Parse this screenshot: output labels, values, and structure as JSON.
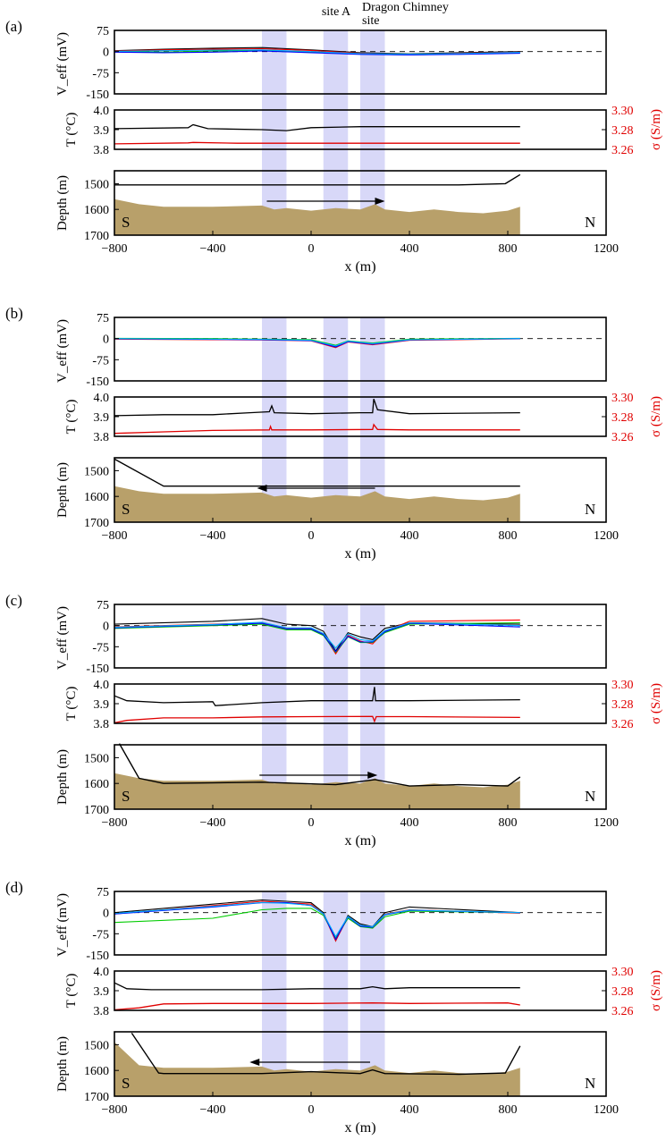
{
  "site_labels": {
    "site_a": "site A",
    "dragon_1": "Dragon Chimney",
    "dragon_2": "site"
  },
  "shared": {
    "x_axis": {
      "label": "x (m)",
      "range": [
        -800,
        1200
      ],
      "ticks": [
        "-800",
        "-400",
        "0",
        "400",
        "800",
        "1200"
      ]
    },
    "shaded_bands_m": [
      [
        -200,
        -100
      ],
      [
        50,
        150
      ],
      [
        200,
        300
      ]
    ],
    "veff_axis": {
      "label": "V_eff (mV)",
      "range": [
        -150,
        75
      ],
      "ticks": [
        "75",
        "0",
        "-75",
        "-150"
      ]
    },
    "temp_axis": {
      "label": "T (°C)",
      "range": [
        3.8,
        4.0
      ],
      "ticks": [
        "4.0",
        "3.9",
        "3.8"
      ]
    },
    "cond_axis": {
      "label": "σ (S/m)",
      "range": [
        3.26,
        3.3
      ],
      "ticks": [
        "3.30",
        "3.28",
        "3.26"
      ]
    },
    "depth_axis": {
      "label": "Depth (m)",
      "range": [
        1450,
        1700
      ],
      "ticks": [
        "1500",
        "1600",
        "1700"
      ]
    },
    "south_label": "S",
    "north_label": "N",
    "colors": {
      "band": "#d8d8f8",
      "seafloor": "#b8a06a",
      "veff": [
        "#000000",
        "#ff0000",
        "#00cc00",
        "#0000ff",
        "#00aaff"
      ],
      "temp": "#000000",
      "cond": "#e00000"
    }
  },
  "chart_data": [
    {
      "panel": "(a)",
      "type": "line",
      "direction": "north",
      "arrow_m": [
        -180,
        300
      ],
      "veff_series": [
        {
          "x": [
            -800,
            -600,
            -400,
            -200,
            0,
            200,
            400,
            600,
            850
          ],
          "y": [
            3,
            8,
            12,
            14,
            6,
            -4,
            -8,
            -4,
            0
          ]
        },
        {
          "x": [
            -800,
            -600,
            -400,
            -200,
            0,
            200,
            400,
            600,
            850
          ],
          "y": [
            2,
            6,
            8,
            10,
            4,
            -6,
            -10,
            -6,
            -2
          ]
        },
        {
          "x": [
            -800,
            -600,
            -400,
            -200,
            0,
            200,
            400,
            600,
            850
          ],
          "y": [
            0,
            -2,
            2,
            4,
            -2,
            -8,
            -12,
            -8,
            -4
          ]
        },
        {
          "x": [
            -800,
            -600,
            -400,
            -200,
            0,
            200,
            400,
            600,
            850
          ],
          "y": [
            -2,
            -4,
            -2,
            2,
            -4,
            -10,
            -12,
            -10,
            -6
          ]
        },
        {
          "x": [
            -800,
            -600,
            -400,
            -200,
            0,
            200,
            400,
            600,
            850
          ],
          "y": [
            1,
            3,
            5,
            6,
            0,
            -7,
            -9,
            -7,
            -3
          ]
        }
      ],
      "temperature": {
        "x": [
          -800,
          -500,
          -480,
          -420,
          -200,
          -100,
          0,
          200,
          400,
          850
        ],
        "y": [
          3.905,
          3.91,
          3.925,
          3.905,
          3.9,
          3.895,
          3.91,
          3.915,
          3.915,
          3.915
        ]
      },
      "conductivity": {
        "x": [
          -800,
          -500,
          -480,
          -300,
          0,
          400,
          850
        ],
        "y": [
          3.2655,
          3.2665,
          3.267,
          3.2662,
          3.2662,
          3.2662,
          3.2662
        ]
      },
      "towyo_depth": {
        "x": [
          -800,
          0,
          600,
          790,
          850
        ],
        "y": [
          1505,
          1505,
          1505,
          1500,
          1465
        ]
      },
      "seafloor_depth": {
        "x": [
          -800,
          -700,
          -600,
          -400,
          -200,
          -150,
          -100,
          0,
          100,
          200,
          260,
          300,
          400,
          500,
          600,
          700,
          800,
          850
        ],
        "y": [
          1560,
          1580,
          1590,
          1590,
          1585,
          1600,
          1595,
          1605,
          1595,
          1600,
          1580,
          1600,
          1610,
          1600,
          1610,
          1615,
          1605,
          1590
        ]
      }
    },
    {
      "panel": "(b)",
      "type": "line",
      "direction": "south",
      "arrow_m": [
        260,
        -220
      ],
      "veff_series": [
        {
          "x": [
            -800,
            -400,
            -200,
            0,
            100,
            150,
            250,
            400,
            850
          ],
          "y": [
            0,
            -2,
            -4,
            -6,
            -28,
            -10,
            -18,
            -4,
            0
          ]
        },
        {
          "x": [
            -800,
            -400,
            -200,
            0,
            100,
            150,
            250,
            400,
            850
          ],
          "y": [
            -2,
            -4,
            -5,
            -8,
            -32,
            -12,
            -22,
            -6,
            -1
          ]
        },
        {
          "x": [
            -800,
            -400,
            -200,
            0,
            100,
            150,
            250,
            400,
            850
          ],
          "y": [
            1,
            0,
            -2,
            -4,
            -24,
            -8,
            -16,
            -2,
            1
          ]
        },
        {
          "x": [
            -800,
            -400,
            -200,
            0,
            100,
            150,
            250,
            400,
            850
          ],
          "y": [
            -1,
            -3,
            -4,
            -7,
            -30,
            -11,
            -20,
            -5,
            0
          ]
        },
        {
          "x": [
            -800,
            -400,
            -200,
            0,
            100,
            150,
            250,
            400,
            850
          ],
          "y": [
            0,
            -2,
            -3,
            -6,
            -26,
            -9,
            -18,
            -4,
            0
          ]
        }
      ],
      "temperature": {
        "x": [
          -800,
          -600,
          -400,
          -250,
          -170,
          -160,
          -150,
          0,
          200,
          250,
          255,
          270,
          400,
          850
        ],
        "y": [
          3.905,
          3.91,
          3.91,
          3.92,
          3.925,
          3.955,
          3.92,
          3.915,
          3.92,
          3.92,
          3.99,
          3.935,
          3.915,
          3.92
        ]
      },
      "conductivity": {
        "x": [
          -800,
          -600,
          -400,
          -170,
          -165,
          -160,
          0,
          250,
          255,
          270,
          400,
          850
        ],
        "y": [
          3.263,
          3.2645,
          3.266,
          3.2665,
          3.27,
          3.2665,
          3.2665,
          3.267,
          3.272,
          3.267,
          3.2665,
          3.2665
        ]
      },
      "towyo_depth": {
        "x": [
          -800,
          -600,
          0,
          850
        ],
        "y": [
          1455,
          1560,
          1560,
          1560
        ]
      },
      "seafloor_depth": {
        "x": [
          -800,
          -700,
          -600,
          -400,
          -200,
          -150,
          -100,
          0,
          100,
          200,
          260,
          300,
          400,
          500,
          600,
          700,
          800,
          850
        ],
        "y": [
          1560,
          1580,
          1590,
          1590,
          1585,
          1600,
          1595,
          1605,
          1595,
          1600,
          1580,
          1600,
          1610,
          1600,
          1610,
          1615,
          1605,
          1590
        ]
      }
    },
    {
      "panel": "(c)",
      "type": "line",
      "direction": "north",
      "arrow_m": [
        -210,
        270
      ],
      "veff_series": [
        {
          "x": [
            -800,
            -400,
            -200,
            -100,
            0,
            50,
            100,
            150,
            200,
            250,
            300,
            400,
            850
          ],
          "y": [
            5,
            15,
            25,
            5,
            0,
            -20,
            -90,
            -25,
            -40,
            -50,
            -10,
            10,
            5
          ]
        },
        {
          "x": [
            -800,
            -400,
            -200,
            -100,
            0,
            50,
            100,
            150,
            200,
            250,
            300,
            400,
            850
          ],
          "y": [
            -5,
            5,
            10,
            -10,
            -10,
            -30,
            -100,
            -35,
            -55,
            -65,
            -20,
            15,
            20
          ]
        },
        {
          "x": [
            -800,
            -400,
            -200,
            -100,
            0,
            50,
            100,
            150,
            200,
            250,
            300,
            400,
            850
          ],
          "y": [
            -10,
            0,
            5,
            -15,
            -15,
            -35,
            -95,
            -40,
            -60,
            -60,
            -25,
            5,
            10
          ]
        },
        {
          "x": [
            -800,
            -400,
            -200,
            -100,
            0,
            50,
            100,
            150,
            200,
            250,
            300,
            400,
            850
          ],
          "y": [
            -8,
            2,
            8,
            -12,
            -12,
            -32,
            -92,
            -38,
            -58,
            -58,
            -22,
            8,
            -5
          ]
        },
        {
          "x": [
            -800,
            -400,
            -200,
            -100,
            0,
            50,
            100,
            150,
            200,
            250,
            300,
            400,
            850
          ],
          "y": [
            -6,
            4,
            12,
            -8,
            -8,
            -28,
            -80,
            -30,
            -50,
            -55,
            -18,
            10,
            0
          ]
        }
      ],
      "temperature": {
        "x": [
          -800,
          -750,
          -600,
          -400,
          -390,
          -200,
          0,
          250,
          258,
          262,
          270,
          400,
          850
        ],
        "y": [
          3.94,
          3.915,
          3.905,
          3.91,
          3.89,
          3.905,
          3.915,
          3.915,
          3.985,
          3.915,
          3.915,
          3.915,
          3.92
        ]
      },
      "conductivity": {
        "x": [
          -800,
          -750,
          -600,
          -400,
          -200,
          0,
          250,
          258,
          265,
          400,
          850
        ],
        "y": [
          3.2605,
          3.263,
          3.2655,
          3.2655,
          3.2665,
          3.2668,
          3.267,
          3.262,
          3.2668,
          3.2668,
          3.266
        ]
      },
      "towyo_depth": {
        "x": [
          -780,
          -700,
          -600,
          -200,
          100,
          260,
          400,
          600,
          800,
          850
        ],
        "y": [
          1445,
          1580,
          1600,
          1595,
          1605,
          1585,
          1610,
          1605,
          1610,
          1575
        ]
      },
      "seafloor_depth": {
        "x": [
          -800,
          -700,
          -600,
          -400,
          -200,
          -150,
          -100,
          0,
          100,
          200,
          260,
          300,
          400,
          500,
          600,
          700,
          800,
          850
        ],
        "y": [
          1560,
          1580,
          1590,
          1590,
          1585,
          1600,
          1595,
          1605,
          1595,
          1600,
          1580,
          1600,
          1610,
          1600,
          1610,
          1615,
          1605,
          1590
        ]
      }
    },
    {
      "panel": "(d)",
      "type": "line",
      "direction": "south",
      "arrow_m": [
        240,
        -250
      ],
      "veff_series": [
        {
          "x": [
            -800,
            -400,
            -200,
            -100,
            0,
            50,
            100,
            150,
            200,
            250,
            300,
            400,
            850
          ],
          "y": [
            0,
            30,
            45,
            40,
            35,
            0,
            -100,
            -10,
            -40,
            -50,
            0,
            20,
            0
          ]
        },
        {
          "x": [
            -800,
            -400,
            -200,
            -100,
            0,
            50,
            100,
            150,
            200,
            250,
            300,
            400,
            850
          ],
          "y": [
            -5,
            25,
            40,
            35,
            30,
            -5,
            -100,
            -15,
            -45,
            -55,
            -5,
            10,
            -2
          ]
        },
        {
          "x": [
            -800,
            -400,
            -200,
            -100,
            0,
            50,
            100,
            150,
            200,
            250,
            300,
            400,
            850
          ],
          "y": [
            -35,
            -20,
            10,
            15,
            15,
            -10,
            -90,
            -20,
            -50,
            -55,
            -15,
            5,
            0
          ]
        },
        {
          "x": [
            -800,
            -400,
            -200,
            -100,
            0,
            50,
            100,
            150,
            200,
            250,
            300,
            400,
            850
          ],
          "y": [
            -5,
            20,
            35,
            35,
            25,
            -5,
            -95,
            -15,
            -48,
            -52,
            -8,
            8,
            0
          ]
        },
        {
          "x": [
            -800,
            -400,
            -200,
            -100,
            0,
            50,
            100,
            150,
            200,
            250,
            300,
            400,
            850
          ],
          "y": [
            -3,
            22,
            36,
            33,
            26,
            -4,
            -85,
            -14,
            -45,
            -50,
            -6,
            9,
            0
          ]
        }
      ],
      "temperature": {
        "x": [
          -800,
          -750,
          -650,
          -400,
          -200,
          0,
          200,
          250,
          300,
          400,
          850
        ],
        "y": [
          3.94,
          3.91,
          3.905,
          3.905,
          3.905,
          3.91,
          3.91,
          3.92,
          3.91,
          3.915,
          3.915
        ]
      },
      "conductivity": {
        "x": [
          -800,
          -700,
          -600,
          -400,
          -200,
          0,
          250,
          400,
          800,
          850
        ],
        "y": [
          3.2605,
          3.2625,
          3.2665,
          3.267,
          3.267,
          3.267,
          3.2675,
          3.267,
          3.2675,
          3.2655
        ]
      },
      "towyo_depth": {
        "x": [
          -730,
          -620,
          -600,
          -200,
          0,
          200,
          250,
          300,
          600,
          790,
          850
        ],
        "y": [
          1455,
          1610,
          1612,
          1612,
          1605,
          1612,
          1598,
          1612,
          1615,
          1610,
          1505
        ]
      },
      "seafloor_depth": {
        "x": [
          -800,
          -700,
          -600,
          -400,
          -200,
          -150,
          -100,
          0,
          100,
          200,
          260,
          300,
          400,
          500,
          600,
          700,
          800,
          850
        ],
        "y": [
          1490,
          1580,
          1590,
          1590,
          1585,
          1600,
          1595,
          1605,
          1595,
          1600,
          1580,
          1600,
          1610,
          1600,
          1610,
          1615,
          1605,
          1590
        ]
      }
    }
  ]
}
